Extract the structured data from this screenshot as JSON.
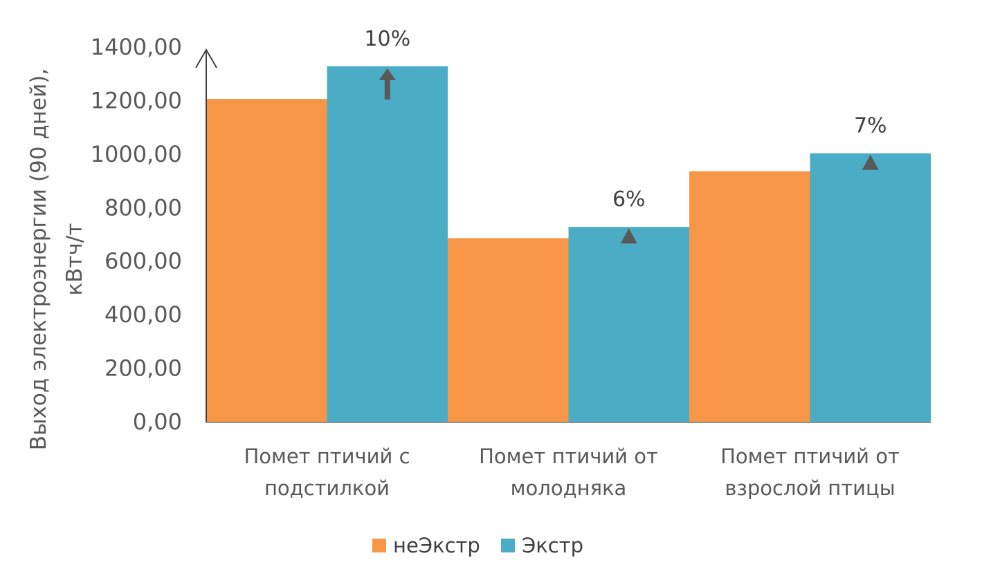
{
  "chart_data": {
    "type": "bar",
    "categories": [
      [
        "Помет птичий с",
        "подстилкой"
      ],
      [
        "Помет птичий от",
        "молодняка"
      ],
      [
        "Помет птичий от",
        "взрослой птицы"
      ]
    ],
    "series": [
      {
        "name": "неЭкстр",
        "color": "#F79646",
        "values": [
          1206,
          686,
          936
        ]
      },
      {
        "name": "Экстр",
        "color": "#4BACC6",
        "values": [
          1328,
          728,
          1003
        ]
      }
    ],
    "annotations": [
      "10%",
      "6%",
      "7%"
    ],
    "ylabel": [
      "Выход электроэнергии (90 дней),",
      "кВтч/т"
    ],
    "yticks": [
      "0,00",
      "200,00",
      "400,00",
      "600,00",
      "800,00",
      "1000,00",
      "1200,00",
      "1400,00"
    ],
    "ylim": [
      0,
      1400
    ],
    "legend_position": "bottom",
    "grid": false
  }
}
